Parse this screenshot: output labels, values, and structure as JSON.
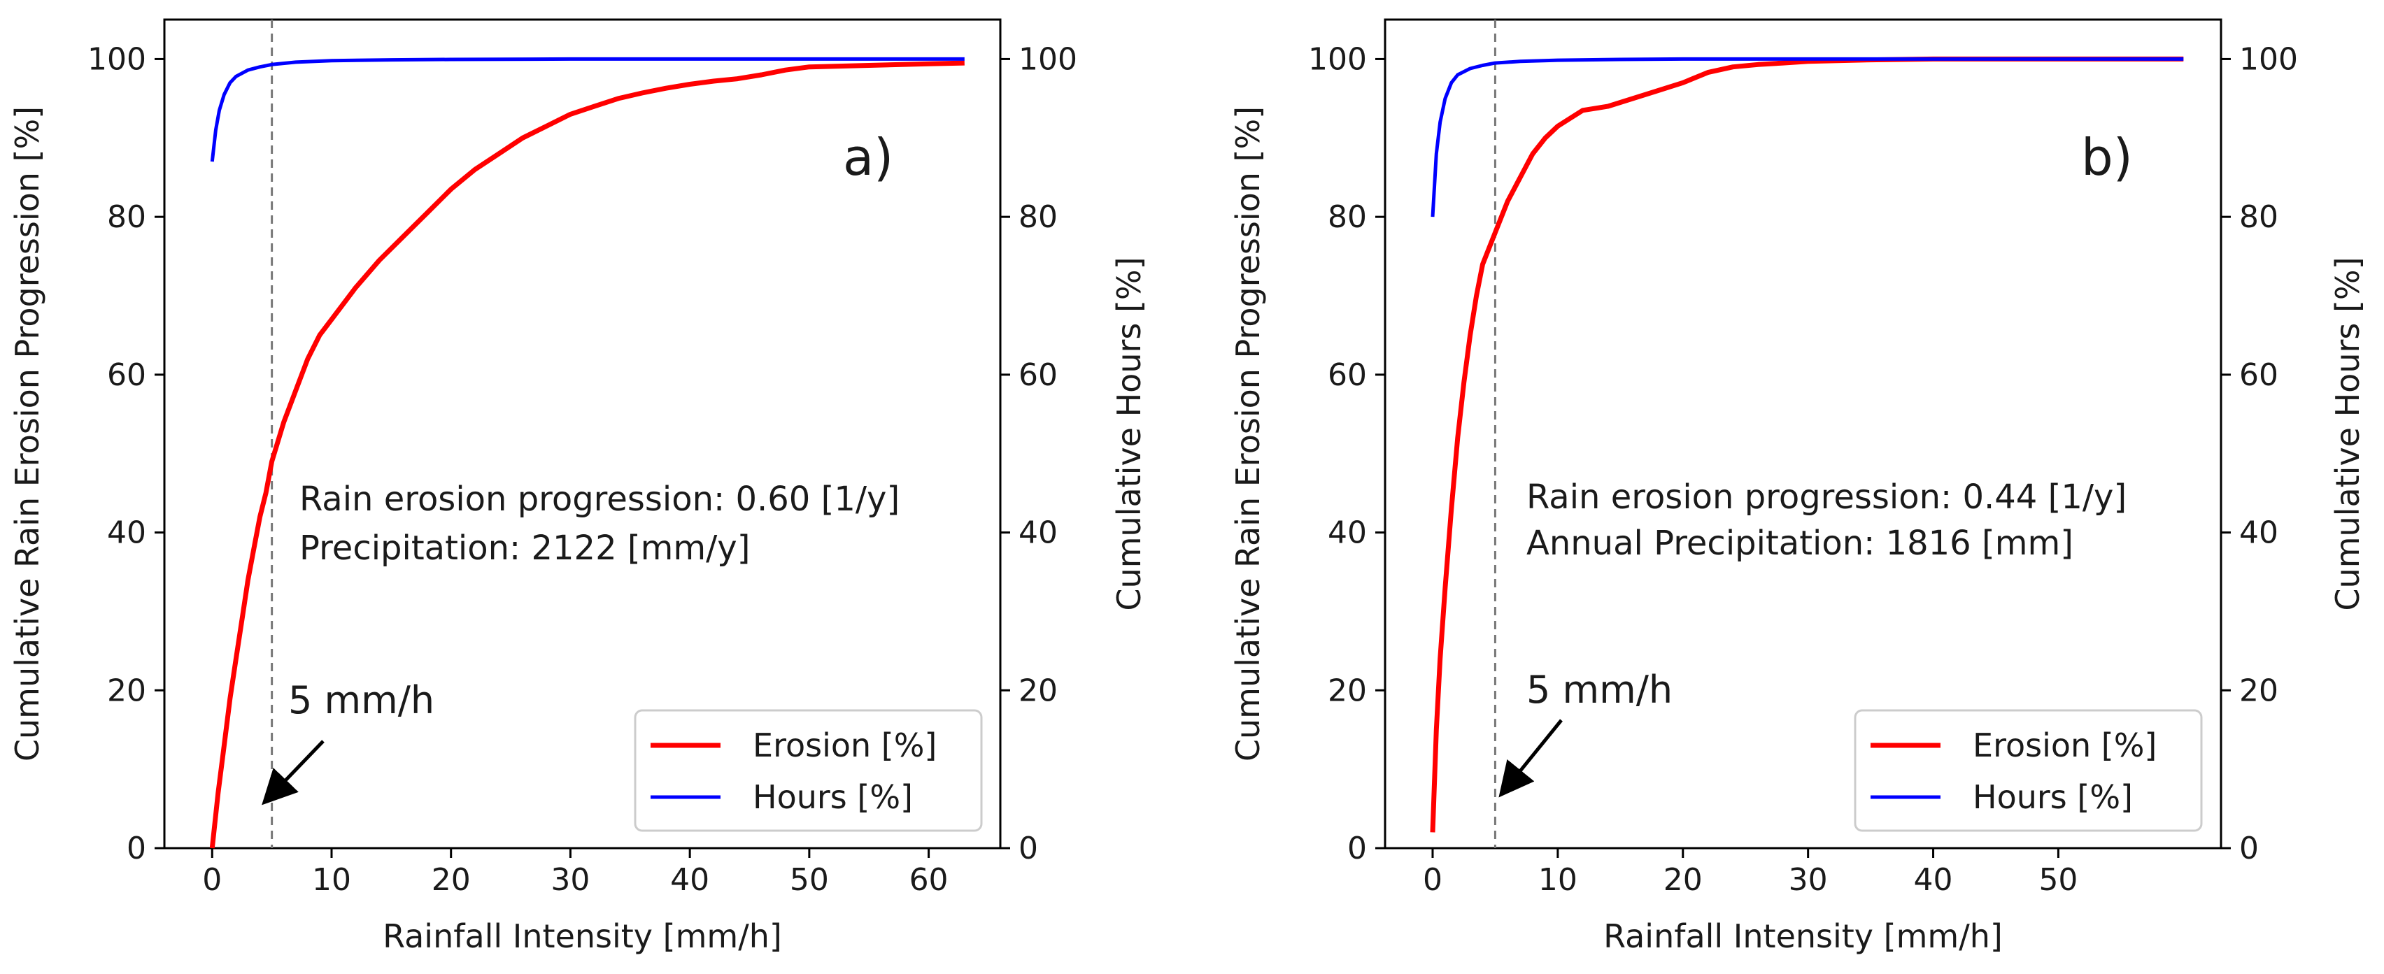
{
  "colors": {
    "erosion": "#ff0000",
    "hours": "#0000ff",
    "vline": "#777777",
    "axis": "#000000",
    "legend_border": "#cccccc"
  },
  "chart_data": [
    {
      "type": "line",
      "panel": "a)",
      "xlabel": "Rainfall Intensity [mm/h]",
      "ylabel": "Cumulative Rain Erosion Progression [%]",
      "ylabel_right": "Cumulative Hours [%]",
      "xlim": [
        -4,
        66
      ],
      "ylim": [
        0,
        105
      ],
      "xticks": [
        0,
        10,
        20,
        30,
        40,
        50,
        60
      ],
      "yticks": [
        0,
        20,
        40,
        60,
        80,
        100
      ],
      "grid": false,
      "legend_position": "lower-right",
      "vline_x": 5,
      "info_lines": [
        "Rain erosion progression: 0.60 [1/y]",
        "Precipitation: 2122 [mm/y]"
      ],
      "annotation": "5 mm/h",
      "series": [
        {
          "name": "Erosion [%]",
          "color_key": "erosion",
          "x": [
            0,
            0.5,
            1,
            1.5,
            2,
            2.5,
            3,
            3.5,
            4,
            4.5,
            5,
            6,
            7,
            8,
            9,
            10,
            12,
            14,
            16,
            18,
            20,
            22,
            24,
            26,
            28,
            30,
            32,
            34,
            36,
            38,
            40,
            42,
            44,
            46,
            48,
            50,
            55,
            60,
            63
          ],
          "values": [
            0,
            7,
            13,
            19,
            24,
            29,
            34,
            38,
            42,
            45,
            49,
            54,
            58,
            62,
            65,
            67,
            71,
            74.5,
            77.5,
            80.5,
            83.5,
            86,
            88,
            90,
            91.5,
            93,
            94,
            95,
            95.7,
            96.3,
            96.8,
            97.2,
            97.5,
            98,
            98.6,
            99,
            99.2,
            99.4,
            99.5
          ]
        },
        {
          "name": "Hours [%]",
          "color_key": "hours",
          "axis": "right",
          "x": [
            0,
            0.3,
            0.6,
            1,
            1.5,
            2,
            3,
            4,
            5,
            7,
            10,
            15,
            20,
            30,
            40,
            50,
            63
          ],
          "values": [
            87,
            91,
            93.5,
            95.5,
            97,
            97.8,
            98.6,
            99,
            99.3,
            99.6,
            99.8,
            99.9,
            99.95,
            100,
            100,
            100,
            100
          ]
        }
      ]
    },
    {
      "type": "line",
      "panel": "b)",
      "xlabel": "Rainfall Intensity [mm/h]",
      "ylabel": "Cumulative Rain Erosion Progression [%]",
      "ylabel_right": "Cumulative Hours [%]",
      "xlim": [
        -3.8,
        63
      ],
      "ylim": [
        0,
        105
      ],
      "xticks": [
        0,
        10,
        20,
        30,
        40,
        50
      ],
      "yticks": [
        0,
        20,
        40,
        60,
        80,
        100
      ],
      "grid": false,
      "legend_position": "lower-right",
      "vline_x": 5,
      "info_lines": [
        "Rain erosion progression: 0.44 [1/y]",
        "Annual Precipitation: 1816 [mm]"
      ],
      "annotation": "5 mm/h",
      "series": [
        {
          "name": "Erosion [%]",
          "color_key": "erosion",
          "x": [
            0,
            0.3,
            0.6,
            1,
            1.5,
            2,
            2.5,
            3,
            3.5,
            4,
            5,
            6,
            7,
            8,
            9,
            10,
            11,
            12,
            14,
            16,
            18,
            20,
            22,
            24,
            26,
            28,
            30,
            35,
            40,
            50,
            60
          ],
          "values": [
            2,
            15,
            24,
            33,
            43,
            52,
            59,
            65,
            70,
            74,
            78,
            82,
            85,
            88,
            90,
            91.5,
            92.5,
            93.5,
            94,
            95,
            96,
            97,
            98.3,
            99,
            99.3,
            99.5,
            99.7,
            99.9,
            100,
            100,
            100
          ]
        },
        {
          "name": "Hours [%]",
          "color_key": "hours",
          "axis": "right",
          "x": [
            0,
            0.3,
            0.6,
            1,
            1.5,
            2,
            3,
            4,
            5,
            7,
            10,
            15,
            20,
            30,
            40,
            50,
            60
          ],
          "values": [
            80,
            88,
            92,
            95,
            97,
            98,
            98.8,
            99.2,
            99.5,
            99.7,
            99.85,
            99.95,
            100,
            100,
            100,
            100,
            100
          ]
        }
      ]
    }
  ]
}
